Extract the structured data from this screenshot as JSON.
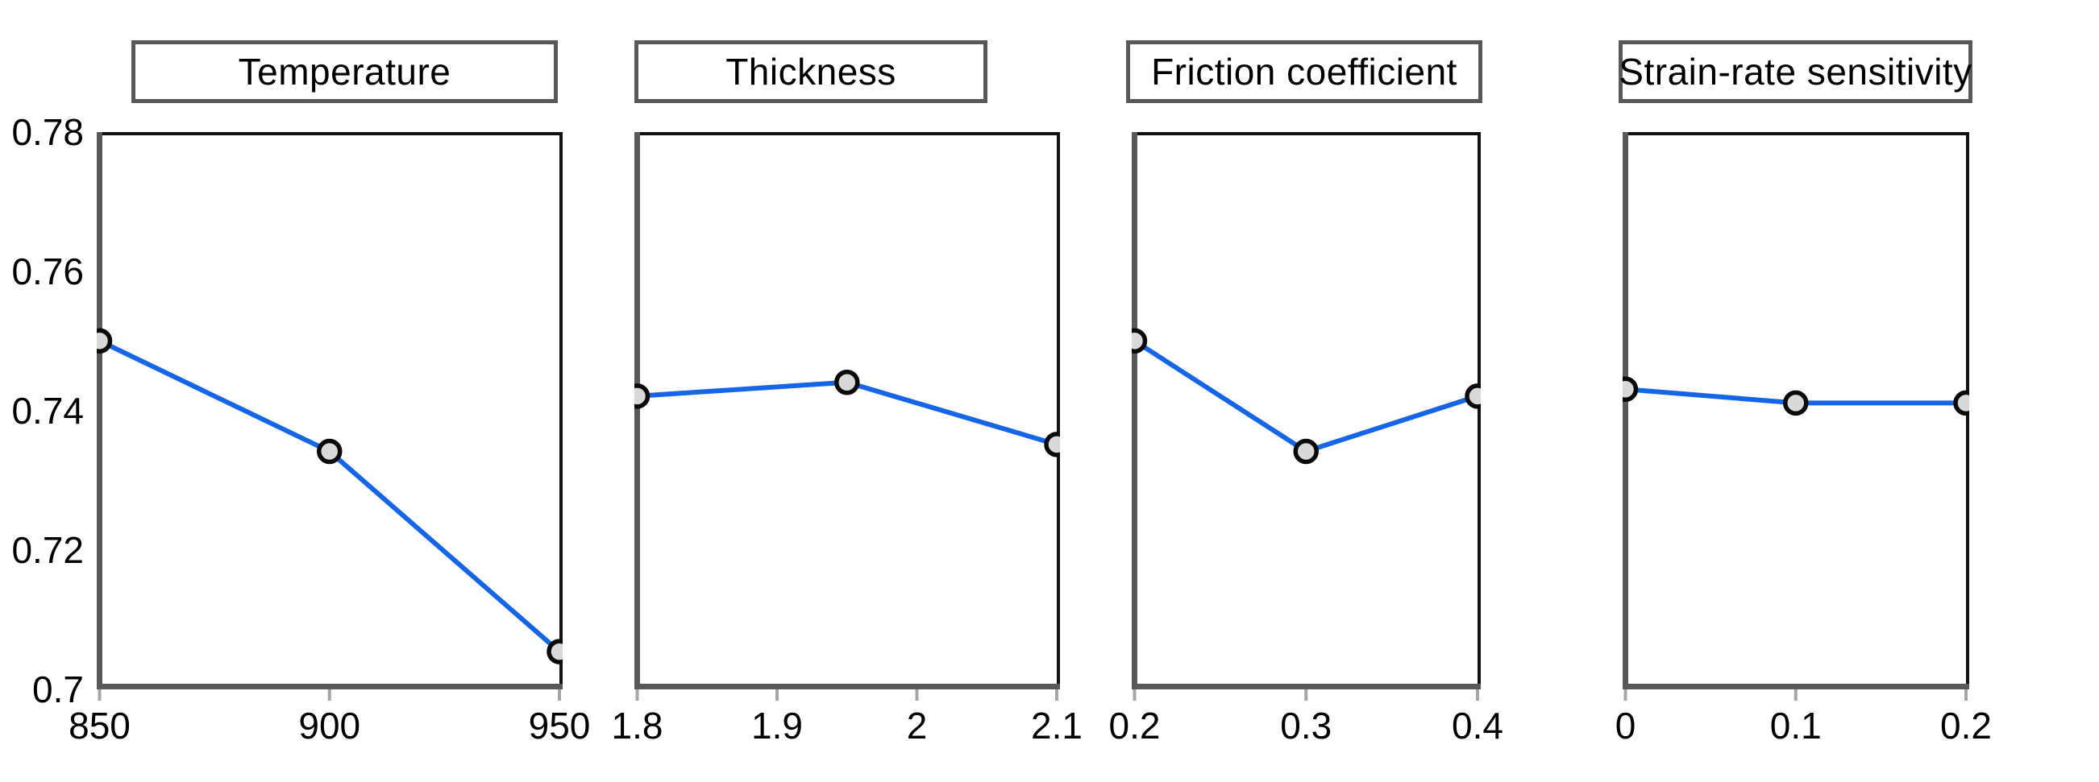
{
  "figure": {
    "kind": "main-effects-plot",
    "background": "#ffffff"
  },
  "colors": {
    "line": "#1565e8",
    "marker_fill": "#d9d9d9",
    "marker_stroke": "#0a0a0a",
    "axis_major": "#595959",
    "axis_minor": "#111111",
    "tick_mark": "#a6a6a6",
    "title_border": "#595959",
    "text": "#000000"
  },
  "y_axis": {
    "lim": [
      0.7,
      0.78
    ],
    "ticks": [
      0.78,
      0.76,
      0.74,
      0.72,
      0.7
    ],
    "tick_labels": [
      "0.78",
      "0.76",
      "0.74",
      "0.72",
      "0.7"
    ]
  },
  "chart_data": [
    {
      "type": "line",
      "title": "Temperature",
      "xlim": [
        850,
        950
      ],
      "xticks": [
        850,
        900,
        950
      ],
      "xtick_labels": [
        "850",
        "900",
        "950"
      ],
      "x": [
        850,
        900,
        950
      ],
      "values": [
        0.75,
        0.734,
        0.705
      ],
      "ylim": [
        0.7,
        0.78
      ],
      "grid": false,
      "legend": "none"
    },
    {
      "type": "line",
      "title": "Thickness",
      "xlim": [
        1.8,
        2.1
      ],
      "xticks": [
        1.8,
        1.9,
        2,
        2.1
      ],
      "xtick_labels": [
        "1.8",
        "1.9",
        "2",
        "2.1"
      ],
      "x": [
        1.8,
        1.95,
        2.1
      ],
      "values": [
        0.742,
        0.744,
        0.735
      ],
      "ylim": [
        0.7,
        0.78
      ],
      "grid": false,
      "legend": "none"
    },
    {
      "type": "line",
      "title": "Friction coefficient",
      "xlim": [
        0.2,
        0.4
      ],
      "xticks": [
        0.2,
        0.3,
        0.4
      ],
      "xtick_labels": [
        "0.2",
        "0.3",
        "0.4"
      ],
      "x": [
        0.2,
        0.3,
        0.4
      ],
      "values": [
        0.75,
        0.734,
        0.742
      ],
      "ylim": [
        0.7,
        0.78
      ],
      "grid": false,
      "legend": "none"
    },
    {
      "type": "line",
      "title": "Strain-rate sensitivity",
      "xlim": [
        0,
        0.2
      ],
      "xticks": [
        0,
        0.1,
        0.2
      ],
      "xtick_labels": [
        "0",
        "0.1",
        "0.2"
      ],
      "x": [
        0,
        0.1,
        0.2
      ],
      "values": [
        0.743,
        0.741,
        0.741
      ],
      "ylim": [
        0.7,
        0.78
      ],
      "grid": false,
      "legend": "none"
    }
  ]
}
